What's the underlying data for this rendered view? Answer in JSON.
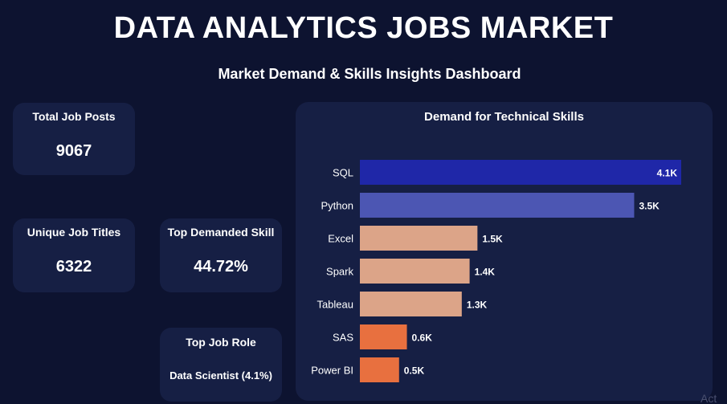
{
  "header": {
    "title": "DATA ANALYTICS JOBS MARKET",
    "subtitle": "Market Demand & Skills Insights Dashboard"
  },
  "kpis": {
    "total_job_posts": {
      "label": "Total Job Posts",
      "value": "9067"
    },
    "unique_job_titles": {
      "label": "Unique Job Titles",
      "value": "6322"
    },
    "top_demanded_skill": {
      "label": "Top Demanded Skill",
      "value": "44.72%"
    },
    "top_job_role": {
      "label": "Top Job Role",
      "value": "Data Scientist (4.1%)"
    }
  },
  "corner_text": "Act",
  "colors": {
    "background": "#0d1330",
    "card": "#161f44",
    "sql_bar": "#1f27a8",
    "python_bar": "#4c56b3",
    "mid_bar": "#dca488",
    "low_bar": "#e8703f"
  },
  "chart_data": {
    "type": "bar",
    "orientation": "horizontal",
    "title": "Demand for Technical Skills",
    "categories": [
      "SQL",
      "Python",
      "Excel",
      "Spark",
      "Tableau",
      "SAS",
      "Power BI"
    ],
    "values": [
      4.1,
      3.5,
      1.5,
      1.4,
      1.3,
      0.6,
      0.5
    ],
    "data_labels": [
      "4.1K",
      "3.5K",
      "1.5K",
      "1.4K",
      "1.3K",
      "0.6K",
      "0.5K"
    ],
    "bar_colors": [
      "#1f27a8",
      "#4c56b3",
      "#dca488",
      "#dca488",
      "#dca488",
      "#e8703f",
      "#e8703f"
    ],
    "unit": "K",
    "xlim": [
      0,
      4.1
    ],
    "grid": false,
    "legend": "none"
  }
}
